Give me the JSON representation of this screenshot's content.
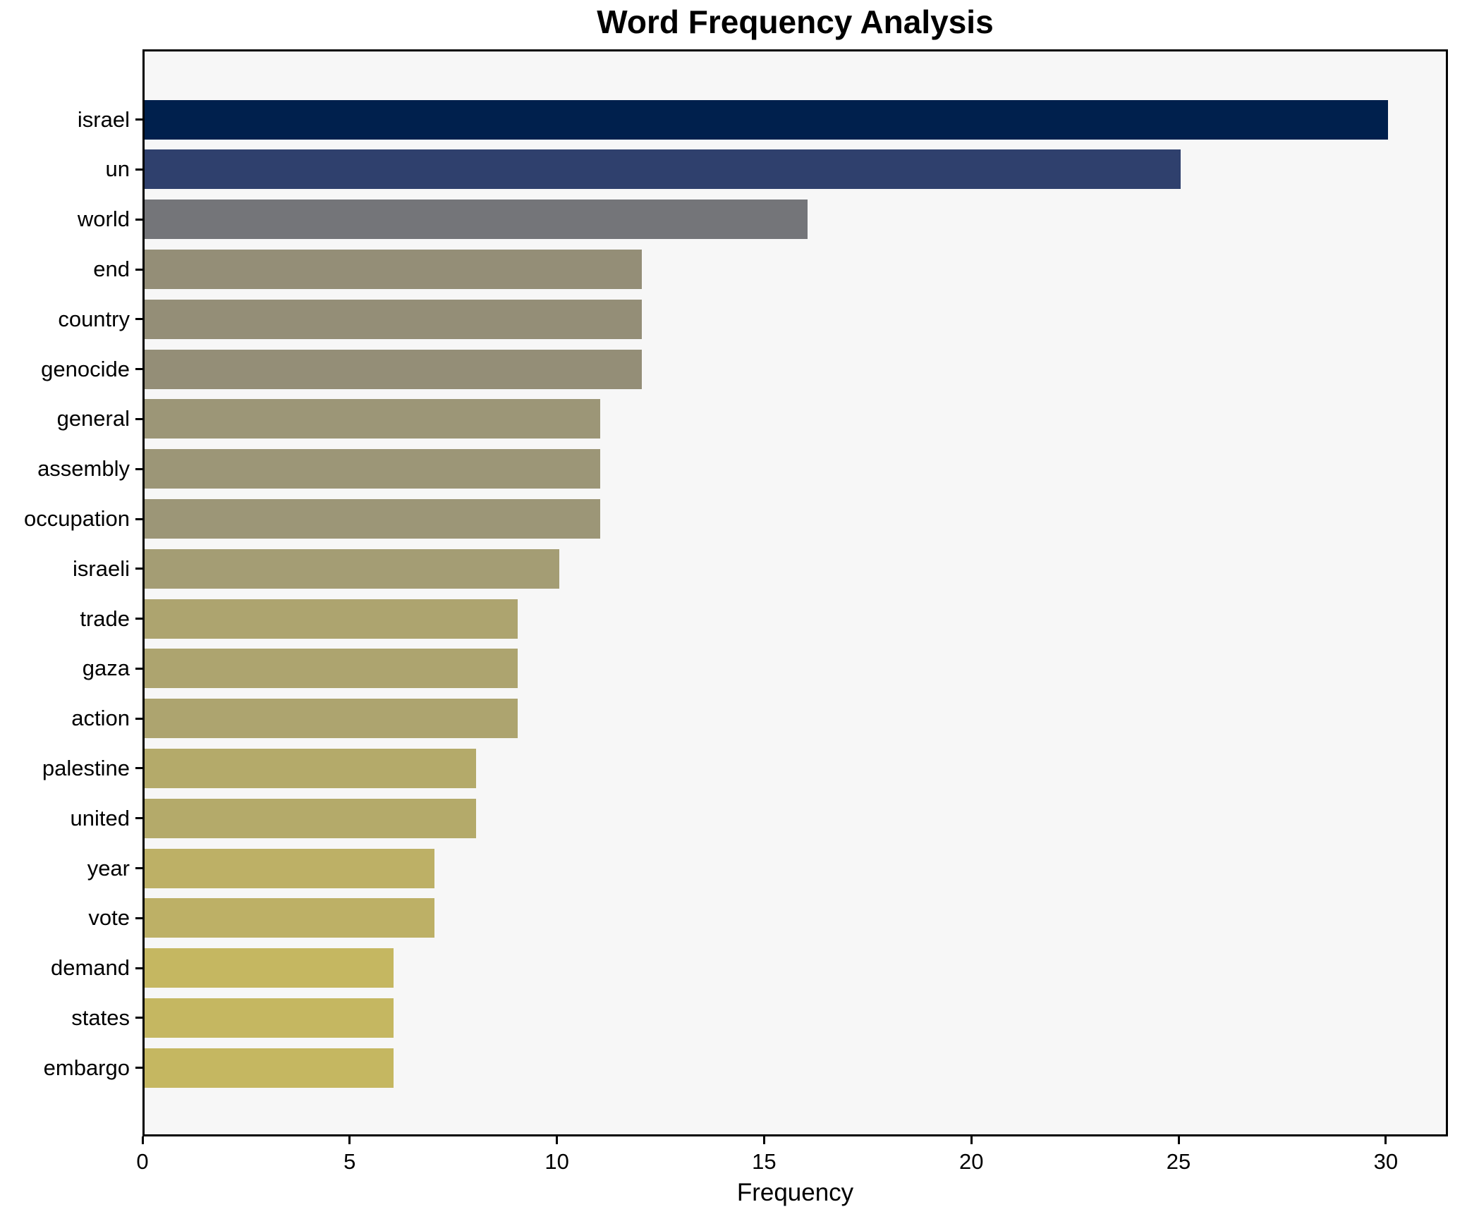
{
  "figure": {
    "title": "Word Frequency Analysis",
    "xlabel": "Frequency"
  },
  "chart_data": {
    "type": "bar",
    "orientation": "horizontal",
    "title": "Word Frequency Analysis",
    "xlabel": "Frequency",
    "ylabel": "",
    "categories": [
      "israel",
      "un",
      "world",
      "end",
      "country",
      "genocide",
      "general",
      "assembly",
      "occupation",
      "israeli",
      "trade",
      "gaza",
      "action",
      "palestine",
      "united",
      "year",
      "vote",
      "demand",
      "states",
      "embargo"
    ],
    "values": [
      30,
      25,
      16,
      12,
      12,
      12,
      11,
      11,
      11,
      10,
      9,
      9,
      9,
      8,
      8,
      7,
      7,
      6,
      6,
      6
    ],
    "bar_colors": [
      "#00204d",
      "#2f406d",
      "#747579",
      "#948e77",
      "#948e77",
      "#948e77",
      "#9c9677",
      "#9c9677",
      "#9c9677",
      "#a49d74",
      "#ada46f",
      "#ada46f",
      "#ada46f",
      "#b4aa6a",
      "#b4aa6a",
      "#bdb066",
      "#bdb066",
      "#c5b761",
      "#c5b761",
      "#c5b761"
    ],
    "xlim": [
      0,
      31.5
    ],
    "xticks": [
      0,
      5,
      10,
      15,
      20,
      25,
      30
    ],
    "grid": false,
    "legend": null,
    "plot_background": "#f7f7f7",
    "figure_background": "#ffffff",
    "spine_color": "#000000"
  }
}
